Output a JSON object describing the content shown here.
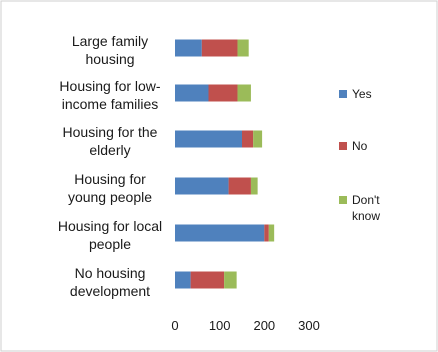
{
  "chart_data": {
    "type": "bar",
    "orientation": "horizontal",
    "stacked": true,
    "categories": [
      [
        "Large family",
        "housing"
      ],
      [
        "Housing for low-",
        "income families"
      ],
      [
        "Housing for the",
        "elderly"
      ],
      [
        "Housing for",
        "young people"
      ],
      [
        "Housing for local",
        "people"
      ],
      [
        "No housing",
        "development"
      ]
    ],
    "series": [
      {
        "name": "Yes",
        "values": [
          60,
          75,
          150,
          120,
          200,
          35
        ],
        "color": "#4f81bd"
      },
      {
        "name": "No",
        "values": [
          80,
          65,
          25,
          50,
          10,
          75
        ],
        "color": "#c0504d"
      },
      {
        "name": "Don't know",
        "values": [
          25,
          30,
          20,
          15,
          12,
          28
        ],
        "color": "#9bbb59"
      }
    ],
    "legend": {
      "position": "right",
      "labels": [
        "Yes",
        "No",
        [
          "Don't",
          "know"
        ]
      ]
    },
    "xticks": [
      "0",
      "100",
      "200",
      "300"
    ],
    "xlim": [
      0,
      300
    ],
    "title": "",
    "xlabel": "",
    "ylabel": "",
    "grid": false
  }
}
